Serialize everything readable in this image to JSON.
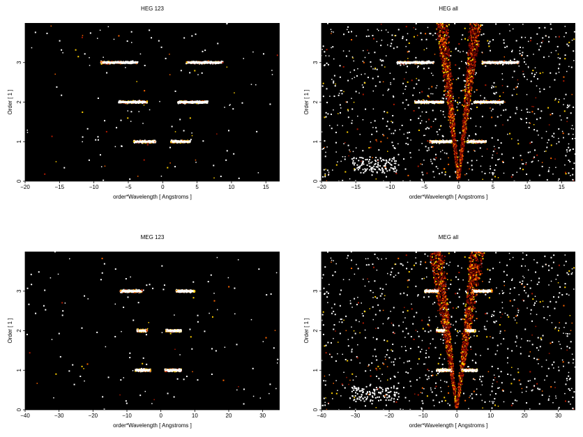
{
  "chart_data": [
    {
      "type": "heatmap",
      "title": "HEG 123",
      "xlabel": "order*Wavelength [ Angstroms ]",
      "ylabel": "Order [ 1 ]",
      "xlim": [
        -20,
        17
      ],
      "ylim": [
        0,
        4
      ],
      "xticks": [
        -20,
        -15,
        -10,
        -5,
        0,
        5,
        10,
        15
      ],
      "yticks": [
        0,
        1,
        2,
        3
      ],
      "background": "#000000",
      "colormap": [
        "#000000",
        "#5a0000",
        "#b01800",
        "#ff6600",
        "#ffd000",
        "#ffffff"
      ],
      "bands": [
        {
          "order": 1,
          "x": [
            -4.2,
            -1.0
          ],
          "peak": "white"
        },
        {
          "order": 1,
          "x": [
            1.2,
            4.0
          ],
          "peak": "white"
        },
        {
          "order": 2,
          "x": [
            -6.4,
            -2.2
          ],
          "peak": "white"
        },
        {
          "order": 2,
          "x": [
            2.2,
            6.6
          ],
          "peak": "white"
        },
        {
          "order": 3,
          "x": [
            -9.0,
            -3.6
          ],
          "peak": "white"
        },
        {
          "order": 3,
          "x": [
            3.4,
            8.8
          ],
          "peak": "white"
        }
      ],
      "scatter_density": "low",
      "v_arms": false
    },
    {
      "type": "heatmap",
      "title": "HEG all",
      "xlabel": "order*Wavelength [ Angstroms ]",
      "ylabel": "Order [ 1 ]",
      "xlim": [
        -20,
        17
      ],
      "ylim": [
        0,
        4
      ],
      "xticks": [
        -20,
        -15,
        -10,
        -5,
        0,
        5,
        10,
        15
      ],
      "yticks": [
        0,
        1,
        2,
        3
      ],
      "background": "#000000",
      "colormap": [
        "#000000",
        "#5a0000",
        "#b01800",
        "#ff6600",
        "#ffd000",
        "#ffffff"
      ],
      "bands": [
        {
          "order": 1,
          "x": [
            -4.2,
            -1.0
          ],
          "peak": "white"
        },
        {
          "order": 1,
          "x": [
            1.2,
            4.0
          ],
          "peak": "white"
        },
        {
          "order": 2,
          "x": [
            -6.4,
            -2.2
          ],
          "peak": "white"
        },
        {
          "order": 2,
          "x": [
            2.2,
            6.6
          ],
          "peak": "white"
        },
        {
          "order": 3,
          "x": [
            -9.0,
            -3.6
          ],
          "peak": "white"
        },
        {
          "order": 3,
          "x": [
            3.4,
            8.8
          ],
          "peak": "white"
        }
      ],
      "scatter_density": "high",
      "v_arms": true
    },
    {
      "type": "heatmap",
      "title": "MEG 123",
      "xlabel": "order*Wavelength [ Angstroms ]",
      "ylabel": "Order [ 1 ]",
      "xlim": [
        -40,
        35
      ],
      "ylim": [
        0,
        4
      ],
      "xticks": [
        -40,
        -30,
        -20,
        -10,
        0,
        10,
        20,
        30
      ],
      "yticks": [
        0,
        1,
        2,
        3
      ],
      "background": "#000000",
      "colormap": [
        "#000000",
        "#5a0000",
        "#b01800",
        "#ff6600",
        "#ffd000",
        "#ffffff"
      ],
      "bands": [
        {
          "order": 1,
          "x": [
            -7.5,
            -3.0
          ],
          "peak": "white"
        },
        {
          "order": 1,
          "x": [
            1.2,
            6.0
          ],
          "peak": "white"
        },
        {
          "order": 2,
          "x": [
            -7.0,
            -4.0
          ],
          "peak": "white"
        },
        {
          "order": 2,
          "x": [
            1.5,
            6.0
          ],
          "peak": "white"
        },
        {
          "order": 3,
          "x": [
            -12.0,
            -5.5
          ],
          "peak": "white"
        },
        {
          "order": 3,
          "x": [
            4.5,
            10.0
          ],
          "peak": "white"
        }
      ],
      "scatter_density": "low",
      "v_arms": false
    },
    {
      "type": "heatmap",
      "title": "MEG all",
      "xlabel": "order*Wavelength [ Angstroms ]",
      "ylabel": "Order [ 1 ]",
      "xlim": [
        -40,
        35
      ],
      "ylim": [
        0,
        4
      ],
      "xticks": [
        -40,
        -30,
        -20,
        -10,
        0,
        10,
        20,
        30
      ],
      "yticks": [
        0,
        1,
        2,
        3
      ],
      "background": "#000000",
      "colormap": [
        "#000000",
        "#5a0000",
        "#b01800",
        "#ff6600",
        "#ffd000",
        "#ffffff"
      ],
      "bands": [
        {
          "order": 1,
          "x": [
            -6.0,
            -1.5
          ],
          "peak": "white"
        },
        {
          "order": 1,
          "x": [
            1.5,
            6.0
          ],
          "peak": "white"
        },
        {
          "order": 2,
          "x": [
            -6.0,
            -3.5
          ],
          "peak": "white"
        },
        {
          "order": 2,
          "x": [
            2.5,
            5.5
          ],
          "peak": "white"
        },
        {
          "order": 3,
          "x": [
            -9.5,
            -5.5
          ],
          "peak": "white"
        },
        {
          "order": 3,
          "x": [
            4.5,
            10.5
          ],
          "peak": "white"
        }
      ],
      "scatter_density": "high",
      "v_arms": true
    }
  ]
}
